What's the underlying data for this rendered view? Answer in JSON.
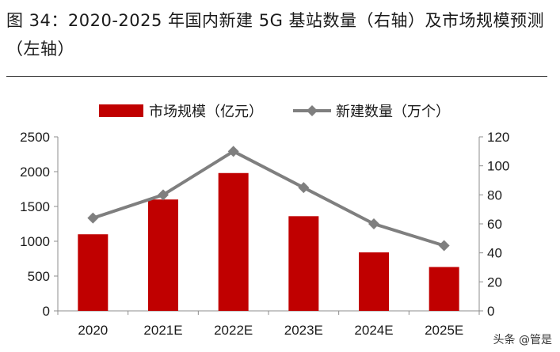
{
  "figure": {
    "title": "图 34：2020-2025 年国内新建 5G 基站数量（右轴）及市场规模预测（左轴）"
  },
  "watermark": "头条 @管是",
  "colors": {
    "bar": "#c00000",
    "line": "#7f7f7f",
    "axis": "#8c8c8c"
  },
  "chart_data": {
    "type": "bar",
    "categories": [
      "2020",
      "2021E",
      "2022E",
      "2023E",
      "2024E",
      "2025E"
    ],
    "series": [
      {
        "name": "市场规模（亿元）",
        "type": "bar",
        "axis": "left",
        "values": [
          1100,
          1600,
          1980,
          1360,
          840,
          630
        ]
      },
      {
        "name": "新建数量（万个）",
        "type": "line",
        "marker": "diamond",
        "axis": "right",
        "values": [
          64,
          80,
          110,
          85,
          60,
          45
        ]
      }
    ],
    "y_left": {
      "min": 0,
      "max": 2500,
      "ticks": [
        0,
        500,
        1000,
        1500,
        2000,
        2500
      ]
    },
    "y_right": {
      "min": 0,
      "max": 120,
      "ticks": [
        0,
        20,
        40,
        60,
        80,
        100,
        120
      ]
    },
    "grid": false,
    "legend": "top"
  }
}
